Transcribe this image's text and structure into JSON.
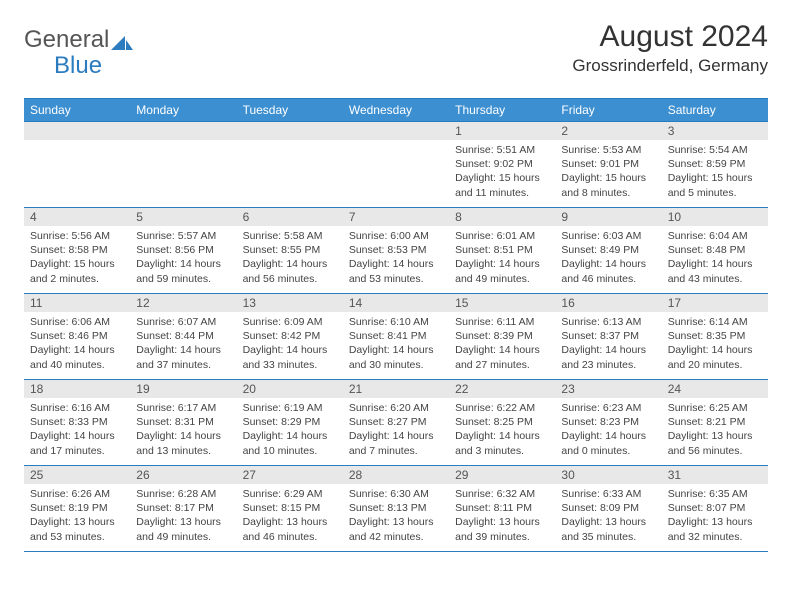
{
  "logo": {
    "text1": "General",
    "text2": "Blue"
  },
  "title": "August 2024",
  "location": "Grossrinderfeld, Germany",
  "colors": {
    "header_bg": "#3c8fd1",
    "border": "#2b7bbf",
    "daynum_bg": "#e8e8e8",
    "text": "#333333"
  },
  "weekdays": [
    "Sunday",
    "Monday",
    "Tuesday",
    "Wednesday",
    "Thursday",
    "Friday",
    "Saturday"
  ],
  "weeks": [
    [
      null,
      null,
      null,
      null,
      {
        "n": "1",
        "sr": "5:51 AM",
        "ss": "9:02 PM",
        "dl": "15 hours and 11 minutes."
      },
      {
        "n": "2",
        "sr": "5:53 AM",
        "ss": "9:01 PM",
        "dl": "15 hours and 8 minutes."
      },
      {
        "n": "3",
        "sr": "5:54 AM",
        "ss": "8:59 PM",
        "dl": "15 hours and 5 minutes."
      }
    ],
    [
      {
        "n": "4",
        "sr": "5:56 AM",
        "ss": "8:58 PM",
        "dl": "15 hours and 2 minutes."
      },
      {
        "n": "5",
        "sr": "5:57 AM",
        "ss": "8:56 PM",
        "dl": "14 hours and 59 minutes."
      },
      {
        "n": "6",
        "sr": "5:58 AM",
        "ss": "8:55 PM",
        "dl": "14 hours and 56 minutes."
      },
      {
        "n": "7",
        "sr": "6:00 AM",
        "ss": "8:53 PM",
        "dl": "14 hours and 53 minutes."
      },
      {
        "n": "8",
        "sr": "6:01 AM",
        "ss": "8:51 PM",
        "dl": "14 hours and 49 minutes."
      },
      {
        "n": "9",
        "sr": "6:03 AM",
        "ss": "8:49 PM",
        "dl": "14 hours and 46 minutes."
      },
      {
        "n": "10",
        "sr": "6:04 AM",
        "ss": "8:48 PM",
        "dl": "14 hours and 43 minutes."
      }
    ],
    [
      {
        "n": "11",
        "sr": "6:06 AM",
        "ss": "8:46 PM",
        "dl": "14 hours and 40 minutes."
      },
      {
        "n": "12",
        "sr": "6:07 AM",
        "ss": "8:44 PM",
        "dl": "14 hours and 37 minutes."
      },
      {
        "n": "13",
        "sr": "6:09 AM",
        "ss": "8:42 PM",
        "dl": "14 hours and 33 minutes."
      },
      {
        "n": "14",
        "sr": "6:10 AM",
        "ss": "8:41 PM",
        "dl": "14 hours and 30 minutes."
      },
      {
        "n": "15",
        "sr": "6:11 AM",
        "ss": "8:39 PM",
        "dl": "14 hours and 27 minutes."
      },
      {
        "n": "16",
        "sr": "6:13 AM",
        "ss": "8:37 PM",
        "dl": "14 hours and 23 minutes."
      },
      {
        "n": "17",
        "sr": "6:14 AM",
        "ss": "8:35 PM",
        "dl": "14 hours and 20 minutes."
      }
    ],
    [
      {
        "n": "18",
        "sr": "6:16 AM",
        "ss": "8:33 PM",
        "dl": "14 hours and 17 minutes."
      },
      {
        "n": "19",
        "sr": "6:17 AM",
        "ss": "8:31 PM",
        "dl": "14 hours and 13 minutes."
      },
      {
        "n": "20",
        "sr": "6:19 AM",
        "ss": "8:29 PM",
        "dl": "14 hours and 10 minutes."
      },
      {
        "n": "21",
        "sr": "6:20 AM",
        "ss": "8:27 PM",
        "dl": "14 hours and 7 minutes."
      },
      {
        "n": "22",
        "sr": "6:22 AM",
        "ss": "8:25 PM",
        "dl": "14 hours and 3 minutes."
      },
      {
        "n": "23",
        "sr": "6:23 AM",
        "ss": "8:23 PM",
        "dl": "14 hours and 0 minutes."
      },
      {
        "n": "24",
        "sr": "6:25 AM",
        "ss": "8:21 PM",
        "dl": "13 hours and 56 minutes."
      }
    ],
    [
      {
        "n": "25",
        "sr": "6:26 AM",
        "ss": "8:19 PM",
        "dl": "13 hours and 53 minutes."
      },
      {
        "n": "26",
        "sr": "6:28 AM",
        "ss": "8:17 PM",
        "dl": "13 hours and 49 minutes."
      },
      {
        "n": "27",
        "sr": "6:29 AM",
        "ss": "8:15 PM",
        "dl": "13 hours and 46 minutes."
      },
      {
        "n": "28",
        "sr": "6:30 AM",
        "ss": "8:13 PM",
        "dl": "13 hours and 42 minutes."
      },
      {
        "n": "29",
        "sr": "6:32 AM",
        "ss": "8:11 PM",
        "dl": "13 hours and 39 minutes."
      },
      {
        "n": "30",
        "sr": "6:33 AM",
        "ss": "8:09 PM",
        "dl": "13 hours and 35 minutes."
      },
      {
        "n": "31",
        "sr": "6:35 AM",
        "ss": "8:07 PM",
        "dl": "13 hours and 32 minutes."
      }
    ]
  ],
  "labels": {
    "sunrise": "Sunrise:",
    "sunset": "Sunset:",
    "daylight": "Daylight:"
  }
}
